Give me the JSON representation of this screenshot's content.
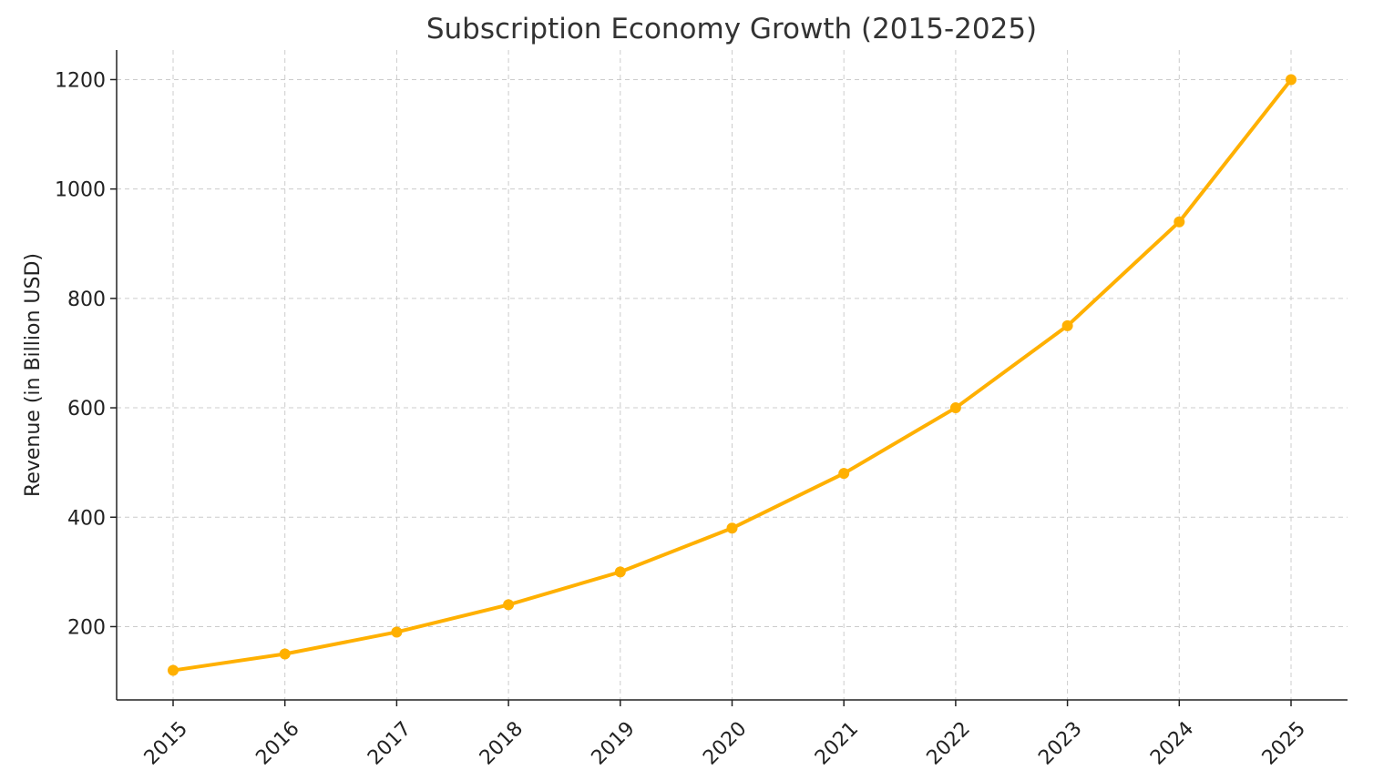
{
  "chart_data": {
    "type": "line",
    "title": "Subscription Economy Growth (2015-2025)",
    "xlabel": "",
    "ylabel": "Revenue (in Billion USD)",
    "categories": [
      "2015",
      "2016",
      "2017",
      "2018",
      "2019",
      "2020",
      "2021",
      "2022",
      "2023",
      "2024",
      "2025"
    ],
    "series": [
      {
        "name": "Revenue",
        "values": [
          120,
          150,
          190,
          240,
          300,
          380,
          480,
          600,
          750,
          940,
          1200
        ],
        "color": "#FFB000",
        "marker": "circle"
      }
    ],
    "ylim": [
      66,
      1254
    ],
    "yticks": [
      200,
      400,
      600,
      800,
      1000,
      1200
    ],
    "grid": true,
    "legend": "none"
  }
}
